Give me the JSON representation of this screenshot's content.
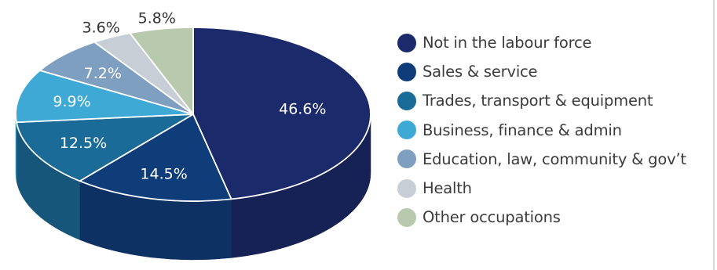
{
  "chart_data": {
    "type": "pie",
    "title": "",
    "slices": [
      {
        "label": "Not in the labour force",
        "value": 46.6,
        "value_label": "46.6%",
        "color": "#1b2a6b"
      },
      {
        "label": "Sales & service",
        "value": 14.5,
        "value_label": "14.5%",
        "color": "#0f3d7a"
      },
      {
        "label": "Trades, transport & equipment",
        "value": 12.5,
        "value_label": "12.5%",
        "color": "#1b6b98"
      },
      {
        "label": "Business, finance & admin",
        "value": 9.9,
        "value_label": "9.9%",
        "color": "#3fa9d6"
      },
      {
        "label": "Education, law, community & gov’t",
        "value": 7.2,
        "value_label": "7.2%",
        "color": "#7f9fc0"
      },
      {
        "label": "Health",
        "value": 3.6,
        "value_label": "3.6%",
        "color": "#c7ced6"
      },
      {
        "label": "Other occupations",
        "value": 5.8,
        "value_label": "5.8%",
        "color": "#b8c9ad"
      }
    ],
    "legend_position": "right"
  }
}
